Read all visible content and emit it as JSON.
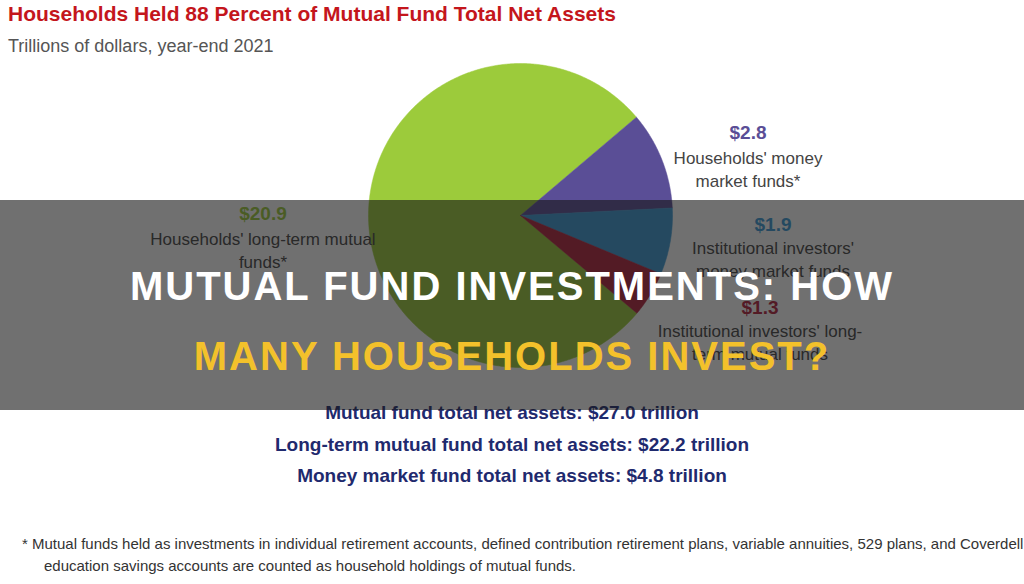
{
  "chart_data": {
    "type": "pie",
    "title": "Households Held 88 Percent of Mutual Fund Total Net Assets",
    "subtitle": "Trillions of dollars, year-end 2021",
    "categories": [
      "Households' long-term mutual funds*",
      "Households' money market funds*",
      "Institutional investors' money market funds",
      "Institutional investors' long-term mutual funds"
    ],
    "values": [
      20.9,
      2.8,
      1.9,
      1.3
    ],
    "value_labels": [
      "$20.9",
      "$2.8",
      "$1.9",
      "$1.3"
    ],
    "colors": [
      "#9ccb3b",
      "#5a4e96",
      "#3b9ad6",
      "#b3203c"
    ],
    "data_labels": true,
    "annotations": {
      "totals": [
        "Mutual fund total net assets: $27.0 trillion",
        "Long-term mutual fund total net assets: $22.2 trillion",
        "Money market fund total net assets: $4.8 trillion"
      ],
      "footnote": "* Mutual funds held as investments in individual retirement accounts, defined contribution retirement plans, variable annuities, 529 plans, and Coverdell education savings accounts are counted as household holdings of mutual funds.",
      "banner": [
        "MUTUAL FUND INVESTMENTS: HOW",
        "MANY HOUSEHOLDS INVEST?"
      ]
    }
  }
}
